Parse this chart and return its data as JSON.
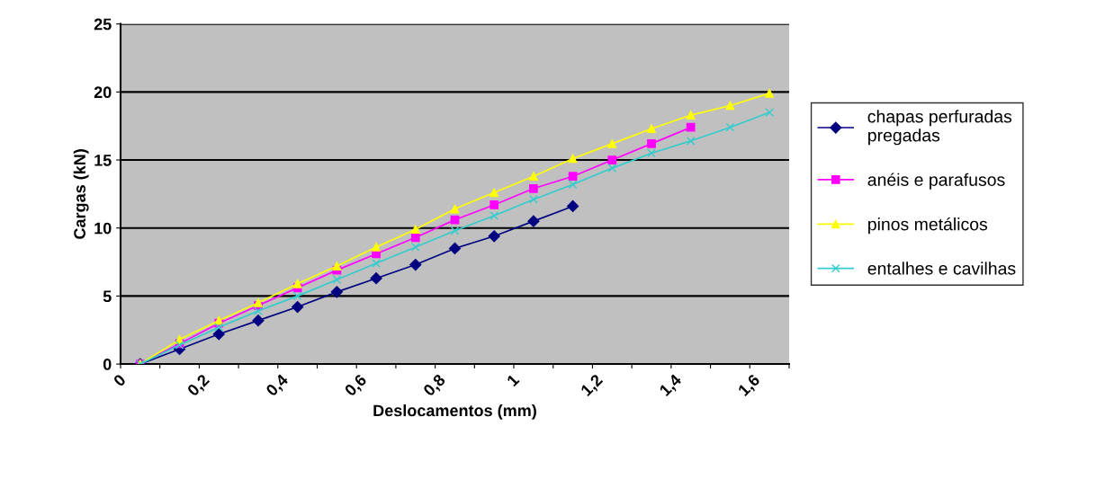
{
  "chart_data": {
    "type": "line",
    "xlabel": "Deslocamentos (mm)",
    "ylabel": "Cargas (kN)",
    "xlim": [
      0,
      1.7
    ],
    "xticks": [
      0,
      {
        "value": 0.1,
        "label": null
      },
      {
        "value": 0.2,
        "label": "0,2"
      },
      {
        "value": 0.3,
        "label": null
      },
      {
        "value": 0.4,
        "label": "0,4"
      },
      {
        "value": 0.5,
        "label": null
      },
      {
        "value": 0.6,
        "label": "0,6"
      },
      {
        "value": 0.7,
        "label": null
      },
      {
        "value": 0.8,
        "label": "0,8"
      },
      {
        "value": 0.9,
        "label": null
      },
      1,
      {
        "value": 1.1,
        "label": null
      },
      {
        "value": 1.2,
        "label": "1,2"
      },
      {
        "value": 1.3,
        "label": null
      },
      {
        "value": 1.4,
        "label": "1,4"
      },
      {
        "value": 1.5,
        "label": null
      },
      {
        "value": 1.6,
        "label": "1,6"
      },
      {
        "value": 1.7,
        "label": null
      }
    ],
    "ylim": [
      0,
      25
    ],
    "yticks": [
      0,
      5,
      10,
      15,
      20,
      25
    ],
    "grid": "y",
    "legend": "right",
    "series": [
      {
        "name": "chapas perfuradas\npregadas",
        "color": "#000080",
        "marker": "diamond",
        "x": [
          0.05,
          0.15,
          0.25,
          0.35,
          0.45,
          0.55,
          0.65,
          0.75,
          0.85,
          0.95,
          1.05,
          1.15
        ],
        "values": [
          0,
          1.1,
          2.2,
          3.2,
          4.2,
          5.3,
          6.3,
          7.3,
          8.5,
          9.4,
          10.5,
          11.6
        ]
      },
      {
        "name": "anéis e parafusos",
        "color": "#ff00ff",
        "marker": "square",
        "x": [
          0.05,
          0.15,
          0.25,
          0.35,
          0.45,
          0.55,
          0.65,
          0.75,
          0.85,
          0.95,
          1.05,
          1.15,
          1.25,
          1.35,
          1.45
        ],
        "values": [
          0,
          1.5,
          3.0,
          4.3,
          5.6,
          6.9,
          8.1,
          9.3,
          10.6,
          11.7,
          12.9,
          13.8,
          15.0,
          16.2,
          17.4
        ]
      },
      {
        "name": "pinos metálicos",
        "color": "#ffff00",
        "marker": "triangle",
        "x": [
          0.05,
          0.15,
          0.25,
          0.35,
          0.45,
          0.55,
          0.65,
          0.75,
          0.85,
          0.95,
          1.05,
          1.15,
          1.25,
          1.35,
          1.45,
          1.55,
          1.65
        ],
        "values": [
          0,
          1.8,
          3.2,
          4.5,
          5.9,
          7.2,
          8.6,
          9.9,
          11.4,
          12.6,
          13.8,
          15.1,
          16.2,
          17.3,
          18.3,
          19.0,
          19.9
        ]
      },
      {
        "name": "entalhes e cavilhas",
        "color": "#33cccc",
        "marker": "cross",
        "x": [
          0.05,
          0.15,
          0.25,
          0.35,
          0.45,
          0.55,
          0.65,
          0.75,
          0.85,
          0.95,
          1.05,
          1.15,
          1.25,
          1.35,
          1.45,
          1.55,
          1.65
        ],
        "values": [
          0,
          1.4,
          2.7,
          3.9,
          5.0,
          6.2,
          7.4,
          8.6,
          9.8,
          10.9,
          12.1,
          13.2,
          14.4,
          15.5,
          16.4,
          17.4,
          18.5
        ]
      }
    ]
  }
}
